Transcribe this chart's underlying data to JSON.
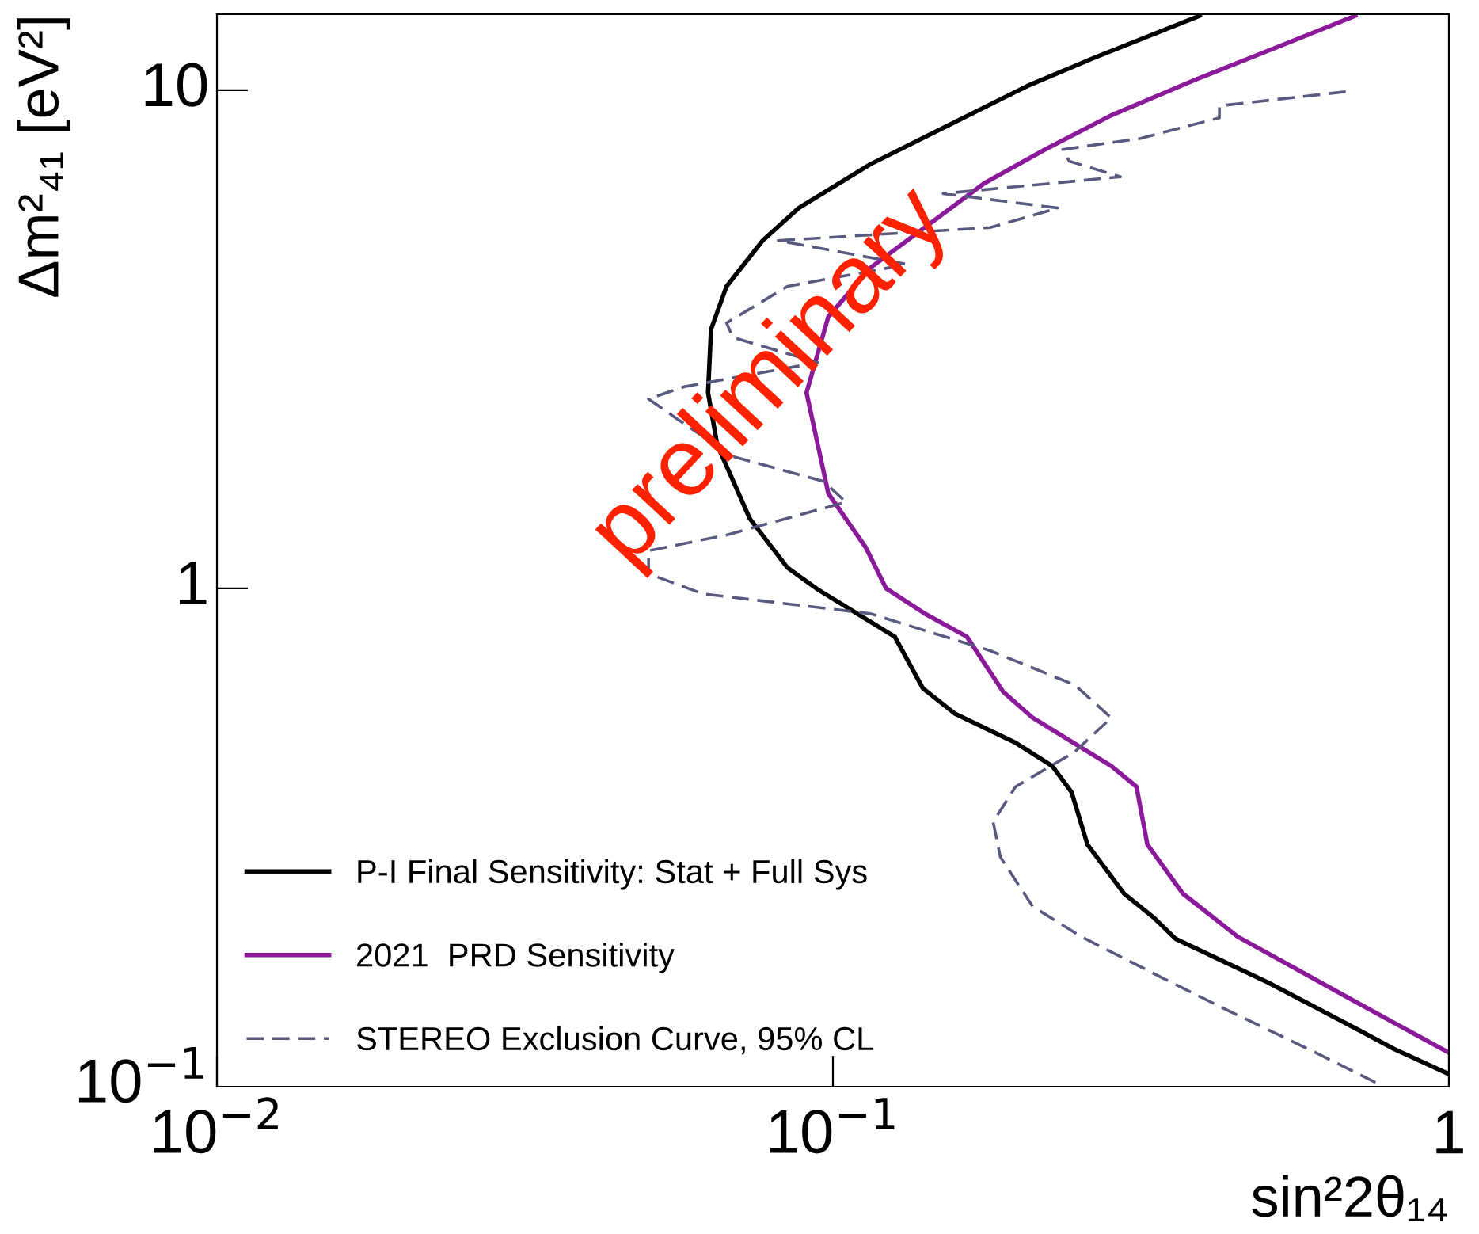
{
  "chart_data": {
    "type": "line",
    "xlabel": "sin²2θ₁₄",
    "ylabel": "Δm²₄₁ [eV²]",
    "log": "xy",
    "grid": false,
    "legend": "bottom left",
    "xlim": [
      0.01,
      1.0
    ],
    "ylim": [
      0.1,
      14.2
    ],
    "xticks": [
      {
        "value": 0.01,
        "label": "10$^{−2}$"
      },
      {
        "value": 0.1,
        "label": "10$^{−1}$"
      },
      1
    ],
    "yticks": [
      {
        "value": 0.1,
        "label": "10$^{−1}$"
      },
      1,
      10
    ],
    "annotations": [
      "preliminary"
    ],
    "series": [
      {
        "name": "P-I Final Sensitivity: Stat + Full Sys",
        "color": "#000000",
        "line_style": "solid",
        "x": [
          0.394,
          0.265,
          0.207,
          0.151,
          0.115,
          0.088,
          0.0769,
          0.0672,
          0.0634,
          0.0627,
          0.0649,
          0.0733,
          0.0844,
          0.0944,
          0.126,
          0.14,
          0.158,
          0.198,
          0.227,
          0.244,
          0.259,
          0.297,
          0.331,
          0.36,
          0.508,
          0.713,
          0.815,
          1.0
        ],
        "values": [
          14.1,
          11.6,
          10.2,
          8.4,
          7.1,
          5.8,
          4.99,
          4.04,
          3.31,
          2.47,
          1.94,
          1.38,
          1.1,
          0.996,
          0.8,
          0.63,
          0.56,
          0.49,
          0.44,
          0.39,
          0.306,
          0.244,
          0.219,
          0.198,
          0.162,
          0.13,
          0.119,
          0.106
        ]
      },
      {
        "name": "2021  PRD Sensitivity",
        "color": "#8b1a9b",
        "line_style": "solid",
        "x": [
          0.705,
          0.544,
          0.388,
          0.283,
          0.221,
          0.176,
          0.138,
          0.115,
          0.0983,
          0.0906,
          0.0983,
          0.113,
          0.122,
          0.141,
          0.165,
          0.189,
          0.211,
          0.283,
          0.311,
          0.324,
          0.37,
          0.454,
          0.713,
          1.0
        ],
        "values": [
          14.1,
          12.4,
          10.5,
          8.9,
          7.6,
          6.5,
          5.2,
          4.4,
          3.51,
          2.47,
          1.55,
          1.21,
          1.0,
          0.89,
          0.8,
          0.62,
          0.55,
          0.44,
          0.4,
          0.306,
          0.244,
          0.2,
          0.147,
          0.117
        ]
      },
      {
        "name": "STEREO Exclusion Curve, 95% CL",
        "color": "#5a5a80",
        "line_style": "dashed",
        "x": [
          0.68,
          0.424,
          0.424,
          0.316,
          0.236,
          0.242,
          0.293,
          0.151,
          0.232,
          0.18,
          0.0815,
          0.132,
          0.0844,
          0.0672,
          0.0688,
          0.0944,
          0.0574,
          0.0502,
          0.0561,
          0.0688,
          0.0966,
          0.105,
          0.0672,
          0.0502,
          0.0502,
          0.0616,
          0.115,
          0.18,
          0.247,
          0.283,
          0.247,
          0.198,
          0.182,
          0.187,
          0.211,
          0.253,
          0.347,
          0.434,
          0.608,
          0.76
        ],
        "values": [
          9.93,
          9.3,
          8.8,
          8.0,
          7.6,
          7.2,
          6.7,
          6.2,
          5.8,
          5.3,
          4.99,
          4.47,
          4.04,
          3.41,
          3.19,
          2.84,
          2.54,
          2.4,
          2.18,
          1.84,
          1.64,
          1.49,
          1.28,
          1.19,
          1.07,
          0.975,
          0.89,
          0.75,
          0.64,
          0.55,
          0.47,
          0.4,
          0.34,
          0.289,
          0.23,
          0.2,
          0.164,
          0.143,
          0.117,
          0.102
        ]
      }
    ]
  }
}
